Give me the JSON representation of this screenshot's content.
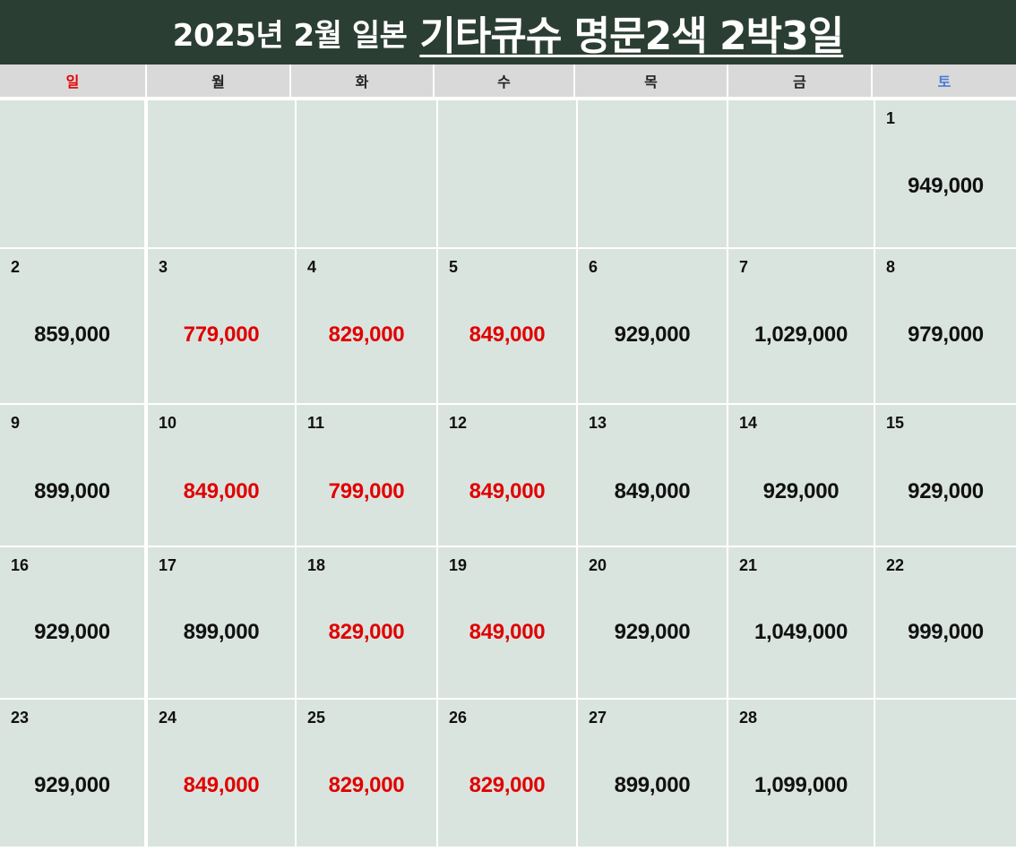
{
  "header": {
    "prefix": "2025년 2월 일본",
    "title": "기타큐슈 명문2색 2박3일",
    "bg_color": "#2b3e33"
  },
  "weekdays": [
    "일",
    "월",
    "화",
    "수",
    "목",
    "금",
    "토"
  ],
  "colors": {
    "sunday": "#e00000",
    "saturday": "#4a7fd0",
    "highlight_price": "#e00000",
    "normal_price": "#111111",
    "cell_bg": "#dae4df"
  },
  "weeks": [
    [
      null,
      null,
      null,
      null,
      null,
      null,
      {
        "day": "1",
        "price": "949,000",
        "highlight": false
      }
    ],
    [
      {
        "day": "2",
        "price": "859,000",
        "highlight": false
      },
      {
        "day": "3",
        "price": "779,000",
        "highlight": true
      },
      {
        "day": "4",
        "price": "829,000",
        "highlight": true
      },
      {
        "day": "5",
        "price": "849,000",
        "highlight": true
      },
      {
        "day": "6",
        "price": "929,000",
        "highlight": false
      },
      {
        "day": "7",
        "price": "1,029,000",
        "highlight": false
      },
      {
        "day": "8",
        "price": "979,000",
        "highlight": false
      }
    ],
    [
      {
        "day": "9",
        "price": "899,000",
        "highlight": false
      },
      {
        "day": "10",
        "price": "849,000",
        "highlight": true
      },
      {
        "day": "11",
        "price": "799,000",
        "highlight": true
      },
      {
        "day": "12",
        "price": "849,000",
        "highlight": true
      },
      {
        "day": "13",
        "price": "849,000",
        "highlight": false
      },
      {
        "day": "14",
        "price": "929,000",
        "highlight": false
      },
      {
        "day": "15",
        "price": "929,000",
        "highlight": false
      }
    ],
    [
      {
        "day": "16",
        "price": "929,000",
        "highlight": false
      },
      {
        "day": "17",
        "price": "899,000",
        "highlight": false
      },
      {
        "day": "18",
        "price": "829,000",
        "highlight": true
      },
      {
        "day": "19",
        "price": "849,000",
        "highlight": true
      },
      {
        "day": "20",
        "price": "929,000",
        "highlight": false
      },
      {
        "day": "21",
        "price": "1,049,000",
        "highlight": false
      },
      {
        "day": "22",
        "price": "999,000",
        "highlight": false
      }
    ],
    [
      {
        "day": "23",
        "price": "929,000",
        "highlight": false
      },
      {
        "day": "24",
        "price": "849,000",
        "highlight": true
      },
      {
        "day": "25",
        "price": "829,000",
        "highlight": true
      },
      {
        "day": "26",
        "price": "829,000",
        "highlight": true
      },
      {
        "day": "27",
        "price": "899,000",
        "highlight": false
      },
      {
        "day": "28",
        "price": "1,099,000",
        "highlight": false
      },
      null
    ]
  ]
}
